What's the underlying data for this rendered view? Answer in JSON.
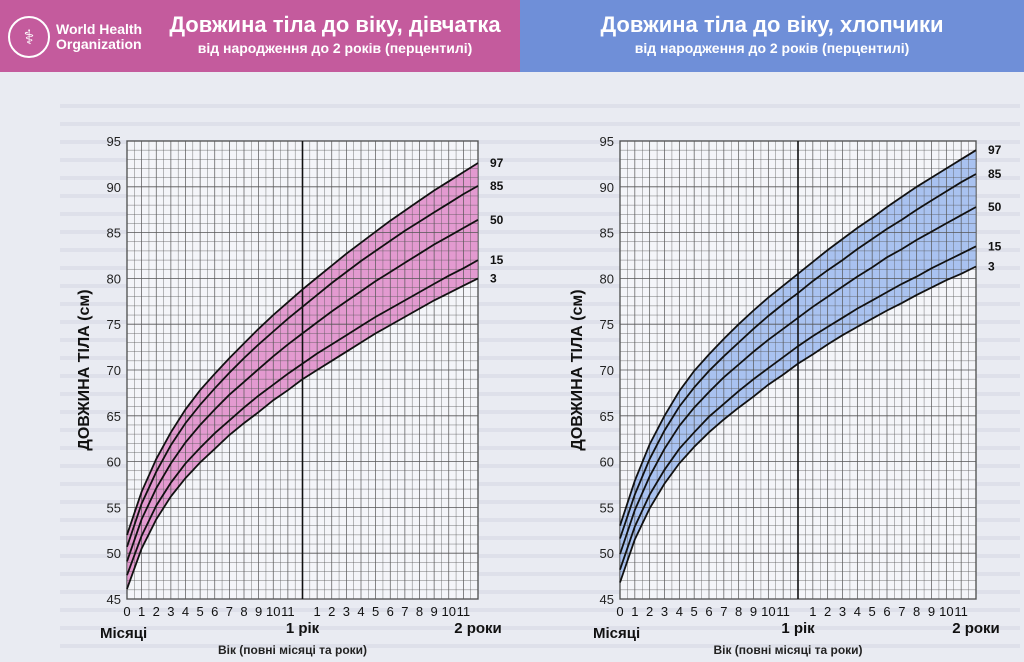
{
  "header": {
    "org_name": "World Health Organization",
    "girls_title": "Довжина тіла до віку, дівчатка",
    "girls_subtitle": "від народження до 2 років (перцентилі)",
    "boys_title": "Довжина тіла  до віку, хлопчики",
    "boys_subtitle": "від народження до 2 років (перцентилі)"
  },
  "colors": {
    "girls_band": "#e39ad0",
    "boys_band": "#a9c2f0",
    "girls_header": "#c45b9d",
    "boys_header": "#6f8fd8"
  },
  "axis_labels": {
    "ylabel": "ДОВЖИНА ТІЛА (см)",
    "xlabel": "Вік (повні місяці та роки)",
    "months": "Місяці",
    "year1": "1 рік",
    "year2": "2 роки"
  },
  "chart_data": [
    {
      "type": "line",
      "title": "Довжина тіла до віку, дівчатка",
      "xlabel": "Вік (повні місяці та роки)",
      "ylabel": "ДОВЖИНА ТІЛА (см)",
      "xlim": [
        0,
        24
      ],
      "ylim": [
        45,
        95
      ],
      "x_ticks": [
        "0",
        "1",
        "2",
        "3",
        "4",
        "5",
        "6",
        "7",
        "8",
        "9",
        "10",
        "11",
        "1 рік",
        "1",
        "2",
        "3",
        "4",
        "5",
        "6",
        "7",
        "8",
        "9",
        "10",
        "11",
        "2 роки"
      ],
      "y_ticks": [
        45,
        50,
        55,
        60,
        65,
        70,
        75,
        80,
        85,
        90,
        95
      ],
      "grid": true,
      "x": [
        0,
        1,
        2,
        3,
        4,
        5,
        6,
        7,
        8,
        9,
        10,
        11,
        12,
        13,
        14,
        15,
        16,
        17,
        18,
        19,
        20,
        21,
        22,
        23,
        24
      ],
      "series": [
        {
          "name": "3",
          "values": [
            46.1,
            50.5,
            53.7,
            56.2,
            58.2,
            59.9,
            61.4,
            62.9,
            64.2,
            65.4,
            66.7,
            67.8,
            69.0,
            70.0,
            71.0,
            72.0,
            73.0,
            74.0,
            74.9,
            75.8,
            76.7,
            77.6,
            78.4,
            79.2,
            80.0
          ]
        },
        {
          "name": "15",
          "values": [
            47.6,
            51.9,
            55.2,
            57.7,
            59.8,
            61.5,
            63.1,
            64.5,
            65.9,
            67.2,
            68.4,
            69.6,
            70.7,
            71.8,
            72.8,
            73.8,
            74.8,
            75.8,
            76.7,
            77.6,
            78.5,
            79.4,
            80.3,
            81.1,
            82.0
          ]
        },
        {
          "name": "50",
          "values": [
            49.1,
            53.7,
            57.1,
            59.8,
            62.1,
            64.0,
            65.7,
            67.3,
            68.7,
            70.1,
            71.5,
            72.8,
            74.0,
            75.2,
            76.4,
            77.5,
            78.6,
            79.7,
            80.7,
            81.7,
            82.7,
            83.7,
            84.6,
            85.5,
            86.4
          ]
        },
        {
          "name": "85",
          "values": [
            50.7,
            55.4,
            58.9,
            61.8,
            64.2,
            66.2,
            68.0,
            69.7,
            71.3,
            72.8,
            74.2,
            75.6,
            76.9,
            78.2,
            79.5,
            80.7,
            81.9,
            83.0,
            84.1,
            85.2,
            86.2,
            87.2,
            88.2,
            89.2,
            90.1
          ]
        },
        {
          "name": "97",
          "values": [
            52.0,
            56.7,
            60.3,
            63.2,
            65.7,
            67.8,
            69.6,
            71.3,
            72.9,
            74.5,
            76.0,
            77.4,
            78.8,
            80.1,
            81.4,
            82.7,
            83.9,
            85.1,
            86.3,
            87.4,
            88.5,
            89.6,
            90.6,
            91.6,
            92.6
          ]
        }
      ]
    },
    {
      "type": "line",
      "title": "Довжина тіла  до віку, хлопчики",
      "xlabel": "Вік (повні місяці та роки)",
      "ylabel": "ДОВЖИНА ТІЛА (см)",
      "xlim": [
        0,
        24
      ],
      "ylim": [
        45,
        95
      ],
      "x_ticks": [
        "0",
        "1",
        "2",
        "3",
        "4",
        "5",
        "6",
        "7",
        "8",
        "9",
        "10",
        "11",
        "1 рік",
        "1",
        "2",
        "3",
        "4",
        "5",
        "6",
        "7",
        "8",
        "9",
        "10",
        "11",
        "2 роки"
      ],
      "y_ticks": [
        45,
        50,
        55,
        60,
        65,
        70,
        75,
        80,
        85,
        90,
        95
      ],
      "grid": true,
      "x": [
        0,
        1,
        2,
        3,
        4,
        5,
        6,
        7,
        8,
        9,
        10,
        11,
        12,
        13,
        14,
        15,
        16,
        17,
        18,
        19,
        20,
        21,
        22,
        23,
        24
      ],
      "series": [
        {
          "name": "3",
          "values": [
            46.8,
            51.5,
            54.9,
            57.6,
            59.8,
            61.6,
            63.2,
            64.6,
            65.9,
            67.1,
            68.4,
            69.5,
            70.7,
            71.7,
            72.8,
            73.8,
            74.7,
            75.6,
            76.5,
            77.3,
            78.2,
            79.0,
            79.8,
            80.5,
            81.3
          ]
        },
        {
          "name": "15",
          "values": [
            48.2,
            52.9,
            56.4,
            59.1,
            61.4,
            63.2,
            64.9,
            66.3,
            67.7,
            69.0,
            70.2,
            71.4,
            72.6,
            73.7,
            74.7,
            75.7,
            76.7,
            77.6,
            78.5,
            79.4,
            80.2,
            81.1,
            81.9,
            82.7,
            83.5
          ]
        },
        {
          "name": "50",
          "values": [
            49.9,
            54.7,
            58.4,
            61.4,
            63.9,
            65.9,
            67.6,
            69.2,
            70.6,
            72.0,
            73.3,
            74.5,
            75.7,
            76.9,
            78.0,
            79.1,
            80.2,
            81.2,
            82.3,
            83.2,
            84.2,
            85.1,
            86.0,
            86.9,
            87.8
          ]
        },
        {
          "name": "85",
          "values": [
            51.6,
            56.4,
            60.3,
            63.4,
            66.0,
            68.1,
            69.9,
            71.5,
            73.0,
            74.5,
            75.9,
            77.2,
            78.4,
            79.7,
            80.9,
            82.0,
            83.2,
            84.3,
            85.4,
            86.4,
            87.5,
            88.5,
            89.5,
            90.5,
            91.4
          ]
        },
        {
          "name": "97",
          "values": [
            53.0,
            57.9,
            61.9,
            65.0,
            67.7,
            69.9,
            71.7,
            73.4,
            75.0,
            76.5,
            77.9,
            79.2,
            80.5,
            81.8,
            83.1,
            84.3,
            85.5,
            86.6,
            87.8,
            88.9,
            90.0,
            91.0,
            92.0,
            93.0,
            94.0
          ]
        }
      ]
    }
  ]
}
